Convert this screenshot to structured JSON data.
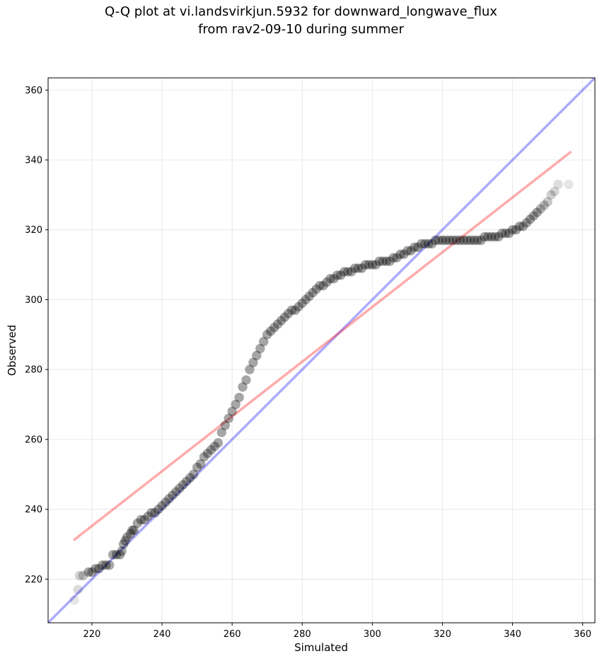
{
  "chart_data": {
    "type": "scatter",
    "title_line1": "Q-Q plot at vi.landsvirkjun.5932 for downward_longwave_flux",
    "title_line2": "from rav2-09-10 during summer",
    "xlabel": "Simulated",
    "ylabel": "Observed",
    "xlim": [
      207.5,
      363.5
    ],
    "ylim": [
      207.5,
      363.5
    ],
    "xticks": [
      220,
      240,
      260,
      280,
      300,
      320,
      340,
      360
    ],
    "yticks": [
      220,
      240,
      260,
      280,
      300,
      320,
      340,
      360
    ],
    "grid": true,
    "identity_line": {
      "color": "#0000ff",
      "points": [
        [
          207.5,
          207.5
        ],
        [
          363.5,
          363.5
        ]
      ]
    },
    "fit_line": {
      "color": "#ff0000",
      "points": [
        [
          215,
          231.3
        ],
        [
          356.5,
          342.2
        ]
      ]
    },
    "qq_points": [
      [
        215,
        214
      ],
      [
        216,
        217
      ],
      [
        216.5,
        221
      ],
      [
        217.5,
        221
      ],
      [
        219,
        222
      ],
      [
        220,
        222
      ],
      [
        221,
        223
      ],
      [
        222,
        223
      ],
      [
        223,
        224
      ],
      [
        224,
        224
      ],
      [
        225,
        224
      ],
      [
        226,
        227
      ],
      [
        227,
        227
      ],
      [
        228,
        227
      ],
      [
        228.5,
        228
      ],
      [
        229,
        230
      ],
      [
        229.5,
        231
      ],
      [
        230,
        232
      ],
      [
        231,
        233
      ],
      [
        231.5,
        234
      ],
      [
        232,
        234
      ],
      [
        233,
        236
      ],
      [
        234,
        237
      ],
      [
        235,
        237
      ],
      [
        236,
        238
      ],
      [
        237,
        239
      ],
      [
        238,
        239
      ],
      [
        239,
        240
      ],
      [
        240,
        241
      ],
      [
        241,
        242
      ],
      [
        242,
        243
      ],
      [
        243,
        244
      ],
      [
        244,
        245
      ],
      [
        245,
        246
      ],
      [
        246,
        247
      ],
      [
        247,
        248
      ],
      [
        248,
        249
      ],
      [
        249,
        250
      ],
      [
        250,
        252
      ],
      [
        251,
        253
      ],
      [
        252,
        255
      ],
      [
        253,
        256
      ],
      [
        254,
        257
      ],
      [
        255,
        258
      ],
      [
        256,
        259
      ],
      [
        257,
        262
      ],
      [
        258,
        264
      ],
      [
        259,
        266
      ],
      [
        260,
        268
      ],
      [
        261,
        270
      ],
      [
        262,
        272
      ],
      [
        263,
        275
      ],
      [
        264,
        277
      ],
      [
        265,
        280
      ],
      [
        266,
        282
      ],
      [
        267,
        284
      ],
      [
        268,
        286
      ],
      [
        269,
        288
      ],
      [
        270,
        290
      ],
      [
        271,
        291
      ],
      [
        272,
        292
      ],
      [
        273,
        293
      ],
      [
        274,
        294
      ],
      [
        275,
        295
      ],
      [
        276,
        296
      ],
      [
        277,
        297
      ],
      [
        278,
        297
      ],
      [
        279,
        298
      ],
      [
        280,
        299
      ],
      [
        281,
        300
      ],
      [
        282,
        301
      ],
      [
        283,
        302
      ],
      [
        284,
        303
      ],
      [
        285,
        304
      ],
      [
        286,
        304
      ],
      [
        287,
        305
      ],
      [
        288,
        306
      ],
      [
        289,
        306
      ],
      [
        290,
        307
      ],
      [
        291,
        307
      ],
      [
        292,
        308
      ],
      [
        293,
        308
      ],
      [
        294,
        308
      ],
      [
        295,
        309
      ],
      [
        296,
        309
      ],
      [
        297,
        309
      ],
      [
        298,
        310
      ],
      [
        299,
        310
      ],
      [
        300,
        310
      ],
      [
        301,
        310
      ],
      [
        302,
        311
      ],
      [
        303,
        311
      ],
      [
        304,
        311
      ],
      [
        305,
        311
      ],
      [
        306,
        312
      ],
      [
        307,
        312
      ],
      [
        308,
        313
      ],
      [
        309,
        313
      ],
      [
        310,
        314
      ],
      [
        311,
        314
      ],
      [
        312,
        315
      ],
      [
        313,
        315
      ],
      [
        314,
        316
      ],
      [
        315,
        316
      ],
      [
        316,
        316
      ],
      [
        317,
        316
      ],
      [
        318,
        317
      ],
      [
        319,
        317
      ],
      [
        320,
        317
      ],
      [
        321,
        317
      ],
      [
        322,
        317
      ],
      [
        323,
        317
      ],
      [
        324,
        317
      ],
      [
        325,
        317
      ],
      [
        326,
        317
      ],
      [
        327,
        317
      ],
      [
        328,
        317
      ],
      [
        329,
        317
      ],
      [
        330,
        317
      ],
      [
        331,
        317
      ],
      [
        332,
        318
      ],
      [
        333,
        318
      ],
      [
        334,
        318
      ],
      [
        335,
        318
      ],
      [
        336,
        318
      ],
      [
        337,
        319
      ],
      [
        338,
        319
      ],
      [
        339,
        319
      ],
      [
        340,
        320
      ],
      [
        341,
        320
      ],
      [
        342,
        321
      ],
      [
        343,
        321
      ],
      [
        344,
        322
      ],
      [
        345,
        323
      ],
      [
        346,
        324
      ],
      [
        347,
        325
      ],
      [
        348,
        326
      ],
      [
        349,
        327
      ],
      [
        350,
        328
      ],
      [
        351,
        330
      ],
      [
        352,
        331
      ],
      [
        353,
        333
      ],
      [
        356,
        333
      ]
    ]
  }
}
